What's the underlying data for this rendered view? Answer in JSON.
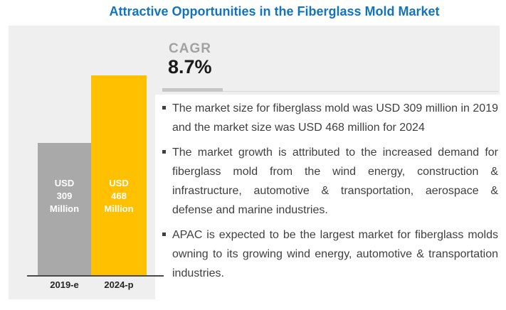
{
  "header": {
    "title": "Attractive Opportunities in the Fiberglass Mold Market"
  },
  "cagr": {
    "label": "CAGR",
    "value": "8.7%"
  },
  "bullets": [
    "The market size for fiberglass mold was USD 309 million in 2019 and the market size was USD 468 million for 2024",
    "The market growth is attributed to the increased demand for fiberglass mold from the wind energy, construction & infrastructure, automotive & transportation, aerospace & defense and marine industries.",
    "APAC is expected to be the largest market for fiberglass molds owning to its growing wind energy, automotive & transportation industries."
  ],
  "chart_data": {
    "type": "bar",
    "title": "Attractive Opportunities in the Fiberglass Mold Market",
    "categories": [
      "2019-e",
      "2024-p"
    ],
    "values": [
      309,
      468
    ],
    "unit": "USD Million",
    "value_labels": [
      [
        "USD",
        "309",
        "Million"
      ],
      [
        "USD",
        "468",
        "Million"
      ]
    ],
    "bar_colors": [
      "#A9A9A9",
      "#FFC000"
    ],
    "ylim": [
      0,
      468
    ],
    "xlabel": "",
    "ylabel": "",
    "grid": false,
    "legend": false,
    "annotations": [
      "CAGR 8.7%"
    ]
  },
  "colors": {
    "title_blue": "#1274BC",
    "panel_gray": "#F0EFEF",
    "bar_gray": "#A9A9A9",
    "bar_yellow": "#FFC000",
    "text_dark": "#3F3F3F",
    "cagr_label_gray": "#A2A2A2",
    "axis_dark": "#4A4A4A"
  }
}
